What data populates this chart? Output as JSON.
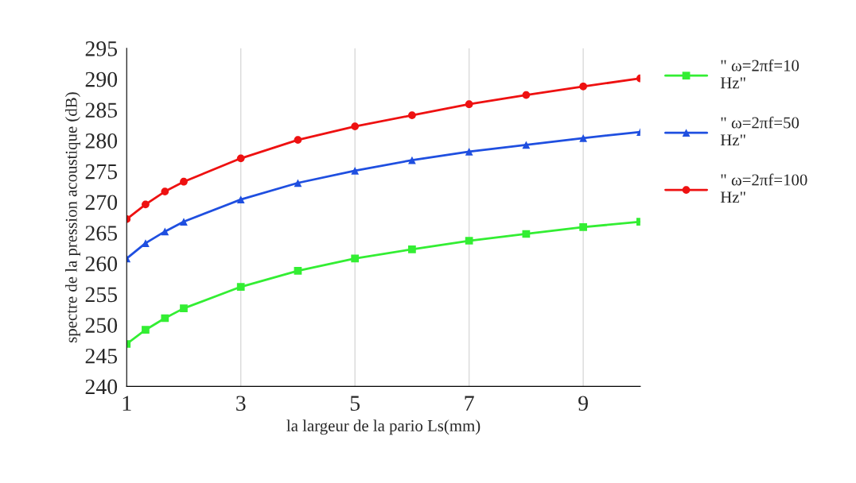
{
  "chart_data": {
    "type": "line",
    "xlabel": "la largeur de la pario Ls(mm)",
    "ylabel": "spectre de la pression acoustique (dB)",
    "x": [
      1,
      1.33,
      1.67,
      2,
      3,
      4,
      5,
      6,
      7,
      8,
      9,
      10
    ],
    "series": [
      {
        "name": "\" ω=2πf=10 Hz\"",
        "color": "#33ee33",
        "marker": "square",
        "values": [
          246.9,
          249.2,
          251.1,
          252.7,
          256.2,
          258.8,
          260.8,
          262.3,
          263.7,
          264.8,
          265.9,
          266.8
        ]
      },
      {
        "name": "\" ω=2πf=50 Hz\"",
        "color": "#1f4fe0",
        "marker": "triangle",
        "values": [
          260.8,
          263.3,
          265.2,
          266.8,
          270.4,
          273.1,
          275.1,
          276.8,
          278.2,
          279.3,
          280.4,
          281.4
        ]
      },
      {
        "name": "\" ω=2πf=100 Hz\"",
        "color": "#ee1111",
        "marker": "circle",
        "values": [
          267.2,
          269.6,
          271.7,
          273.3,
          277.1,
          280.1,
          282.3,
          284.1,
          285.9,
          287.4,
          288.8,
          290.1
        ]
      }
    ],
    "xlim": [
      1,
      10
    ],
    "xticks": [
      1,
      3,
      5,
      7,
      9
    ],
    "ylim": [
      240,
      295
    ],
    "yticks": [
      240,
      245,
      250,
      255,
      260,
      265,
      270,
      275,
      280,
      285,
      290,
      295
    ],
    "grid": "x",
    "legend": "right",
    "line_style": "solid"
  }
}
